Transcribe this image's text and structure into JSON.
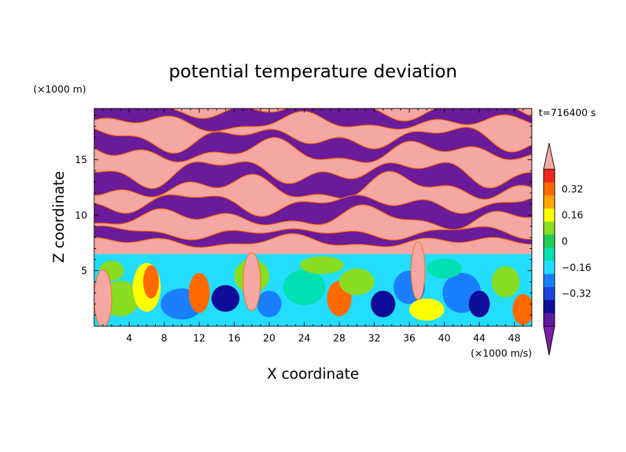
{
  "chart_data": {
    "type": "heatmap",
    "title": "potential temperature deviation",
    "xlabel": "X coordinate",
    "ylabel": "Z coordinate",
    "x_unit": "(×1000 m/s)",
    "y_unit": "(×1000 m)",
    "time_label": "t=716400 s",
    "xlim": [
      0,
      50
    ],
    "ylim": [
      0,
      19.6
    ],
    "x_ticks": [
      "4",
      "8",
      "12",
      "16",
      "20",
      "24",
      "28",
      "32",
      "36",
      "40",
      "44",
      "48"
    ],
    "y_ticks": [
      "5",
      "10",
      "15"
    ],
    "colorbar": {
      "labels": [
        "0.32",
        "0.16",
        "0",
        "−0.16",
        "−0.32"
      ],
      "levels": [
        0.32,
        0.16,
        0,
        -0.16,
        -0.32
      ],
      "colors_top_to_bottom": [
        "#f4a7a3",
        "#ee2a1f",
        "#ff6a00",
        "#ffa500",
        "#ffff00",
        "#88dd22",
        "#22cc55",
        "#00e0b0",
        "#22ddff",
        "#1a7fff",
        "#1a44dd",
        "#0d0d99",
        "#5b1a9e",
        "#7a22a8"
      ],
      "extend_max_color": "#f4a7a3",
      "extend_min_color": "#7a22a8"
    },
    "field": {
      "upper_layer_colors": {
        "positive": "#f4a7a3",
        "negative": "#6a1b9a",
        "edge_warm": "#ff6a00",
        "edge_cool": "#22ddff"
      },
      "lower_layer_dominant": [
        "#00e0b0",
        "#22ddff",
        "#88dd22",
        "#1a7fff",
        "#ffff00",
        "#ff6a00",
        "#0d0d99"
      ]
    }
  }
}
